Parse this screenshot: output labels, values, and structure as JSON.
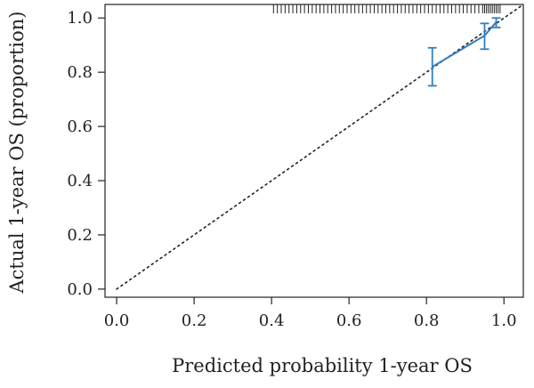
{
  "chart_data": {
    "type": "line",
    "xlabel": "Predicted probability 1-year OS",
    "ylabel": "Actual 1-year OS (proportion)",
    "xlim": [
      -0.03,
      1.05
    ],
    "ylim": [
      -0.03,
      1.05
    ],
    "xticks": [
      "0.0",
      "0.2",
      "0.4",
      "0.6",
      "0.8",
      "1.0"
    ],
    "yticks": [
      "0.0",
      "0.2",
      "0.4",
      "0.6",
      "0.8",
      "1.0"
    ],
    "reference_line": {
      "style": "dotted",
      "from": [
        0,
        0
      ],
      "to": [
        1.05,
        1.05
      ]
    },
    "series": [
      {
        "x": [
          0.815,
          0.95,
          0.98
        ],
        "y": [
          0.82,
          0.935,
          0.985
        ],
        "ci_low": [
          0.75,
          0.885,
          0.965
        ],
        "ci_high": [
          0.89,
          0.98,
          1.0
        ]
      }
    ],
    "rug_x": [
      0.405,
      0.415,
      0.425,
      0.435,
      0.445,
      0.455,
      0.465,
      0.475,
      0.485,
      0.495,
      0.505,
      0.515,
      0.525,
      0.535,
      0.545,
      0.555,
      0.565,
      0.575,
      0.585,
      0.595,
      0.605,
      0.615,
      0.625,
      0.635,
      0.645,
      0.655,
      0.665,
      0.675,
      0.685,
      0.695,
      0.705,
      0.715,
      0.725,
      0.735,
      0.745,
      0.755,
      0.765,
      0.775,
      0.785,
      0.795,
      0.805,
      0.815,
      0.825,
      0.835,
      0.845,
      0.855,
      0.865,
      0.875,
      0.885,
      0.895,
      0.905,
      0.915,
      0.925,
      0.935,
      0.945,
      0.95,
      0.955,
      0.96,
      0.965,
      0.97,
      0.975,
      0.98,
      0.985,
      0.99
    ],
    "colors": {
      "curve": "#2f7fc1",
      "axes": "#222222",
      "reference": "#222222"
    }
  }
}
